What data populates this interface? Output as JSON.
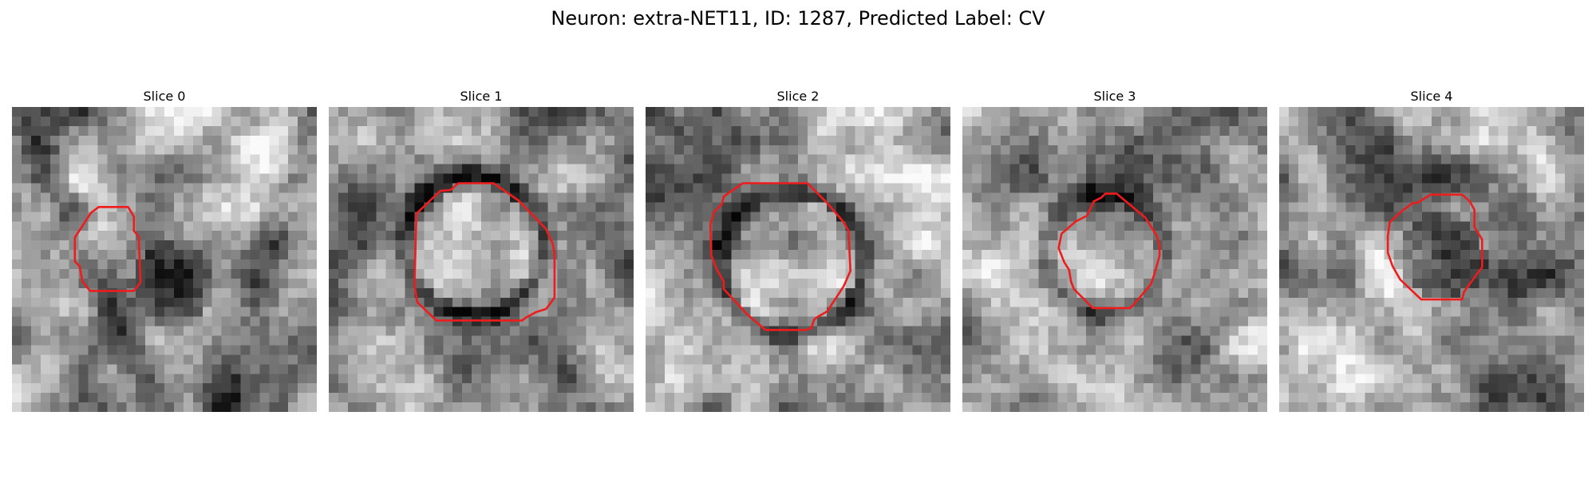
{
  "figure": {
    "title": "Neuron: extra-NET11, ID: 1287, Predicted Label: CV"
  },
  "panels": [
    {
      "title": "Slice 0",
      "image_description": "Grayscale EM patch, dark textured blob in center outlined by red contour"
    },
    {
      "title": "Slice 1",
      "image_description": "Grayscale EM patch, bright round vesicle with dark ring outlined by red contour"
    },
    {
      "title": "Slice 2",
      "image_description": "Grayscale EM patch, bright round vesicle with dark ring outlined by red contour"
    },
    {
      "title": "Slice 3",
      "image_description": "Grayscale EM patch, mid-gray round vesicle outlined by red contour"
    },
    {
      "title": "Slice 4",
      "image_description": "Grayscale EM patch, dark blob in center outlined by red contour"
    }
  ],
  "colors": {
    "contour": "#ee1c1c",
    "background": "#ffffff"
  }
}
